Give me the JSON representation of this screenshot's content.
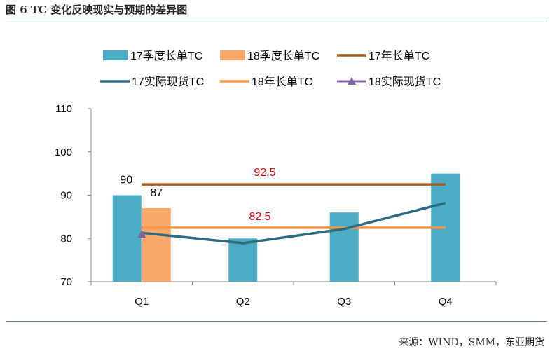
{
  "figure": {
    "title": "图 6 TC 变化反映现实与预期的差异图",
    "source": "来源：WIND，SMM，东亚期货"
  },
  "colors": {
    "bar17": "#4bacc6",
    "bar18": "#f9a96b",
    "line17long": "#a5581f",
    "line17spot": "#2e6b80",
    "line18long": "#f79646",
    "marker18spot": "#8064a2",
    "label_red": "#e8000b",
    "axis": "#888888"
  },
  "chart_data": {
    "type": "bar",
    "categories": [
      "Q1",
      "Q2",
      "Q3",
      "Q4"
    ],
    "ylim": [
      70,
      110
    ],
    "yticks": [
      70,
      80,
      90,
      100,
      110
    ],
    "series": [
      {
        "name": "17季度长单TC",
        "kind": "bar",
        "values": [
          90,
          80,
          86,
          95
        ]
      },
      {
        "name": "18季度长单TC",
        "kind": "bar",
        "values": [
          87,
          null,
          null,
          null
        ]
      },
      {
        "name": "17年长单TC",
        "kind": "hline",
        "value": 92.5
      },
      {
        "name": "17实际现货TC",
        "kind": "line",
        "values": [
          81.3,
          78.9,
          82.2,
          88.2
        ]
      },
      {
        "name": "18年长单TC",
        "kind": "hline",
        "value": 82.5
      },
      {
        "name": "18实际现货TC",
        "kind": "marker",
        "values": [
          81,
          null,
          null,
          null
        ]
      }
    ],
    "data_labels": {
      "bar17_q1": "90",
      "bar18_q1": "87",
      "line17long": "92.5",
      "line18long": "82.5"
    }
  }
}
